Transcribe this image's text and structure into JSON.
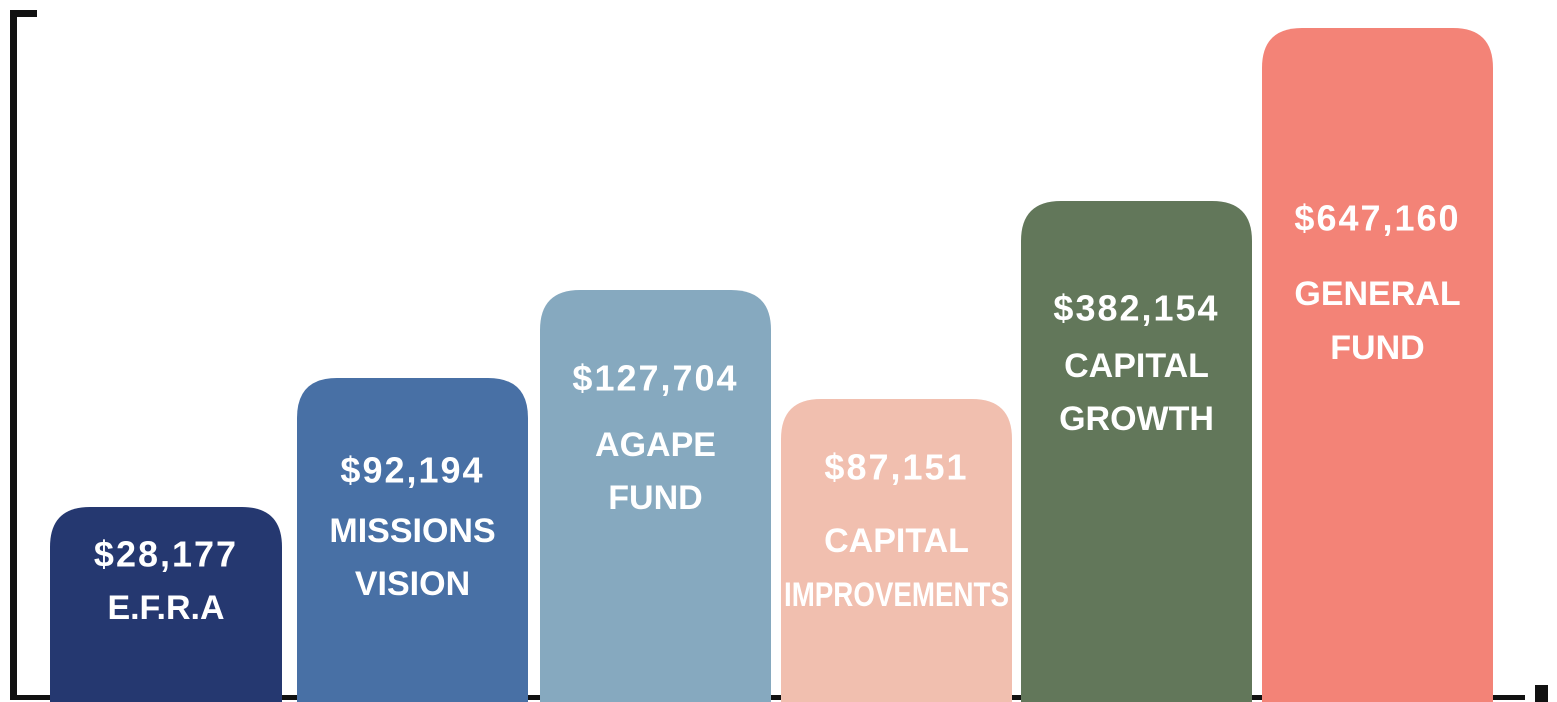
{
  "bars": [
    {
      "amount": "$28,177",
      "label": [
        "E.F.R.A"
      ],
      "color": "#253870"
    },
    {
      "amount": "$92,194",
      "label": [
        "MISSIONS",
        "VISION"
      ],
      "color": "#4870a5"
    },
    {
      "amount": "$127,704",
      "label": [
        "AGAPE",
        "FUND"
      ],
      "color": "#86a9bf"
    },
    {
      "amount": "$87,151",
      "label": [
        "CAPITAL",
        "IMPROVEMENTS"
      ],
      "color": "#f1bfaf"
    },
    {
      "amount": "$382,154",
      "label": [
        "CAPITAL",
        "GROWTH"
      ],
      "color": "#62775a"
    },
    {
      "amount": "$647,160",
      "label": [
        "GENERAL",
        "FUND"
      ],
      "color": "#f38377"
    }
  ]
}
